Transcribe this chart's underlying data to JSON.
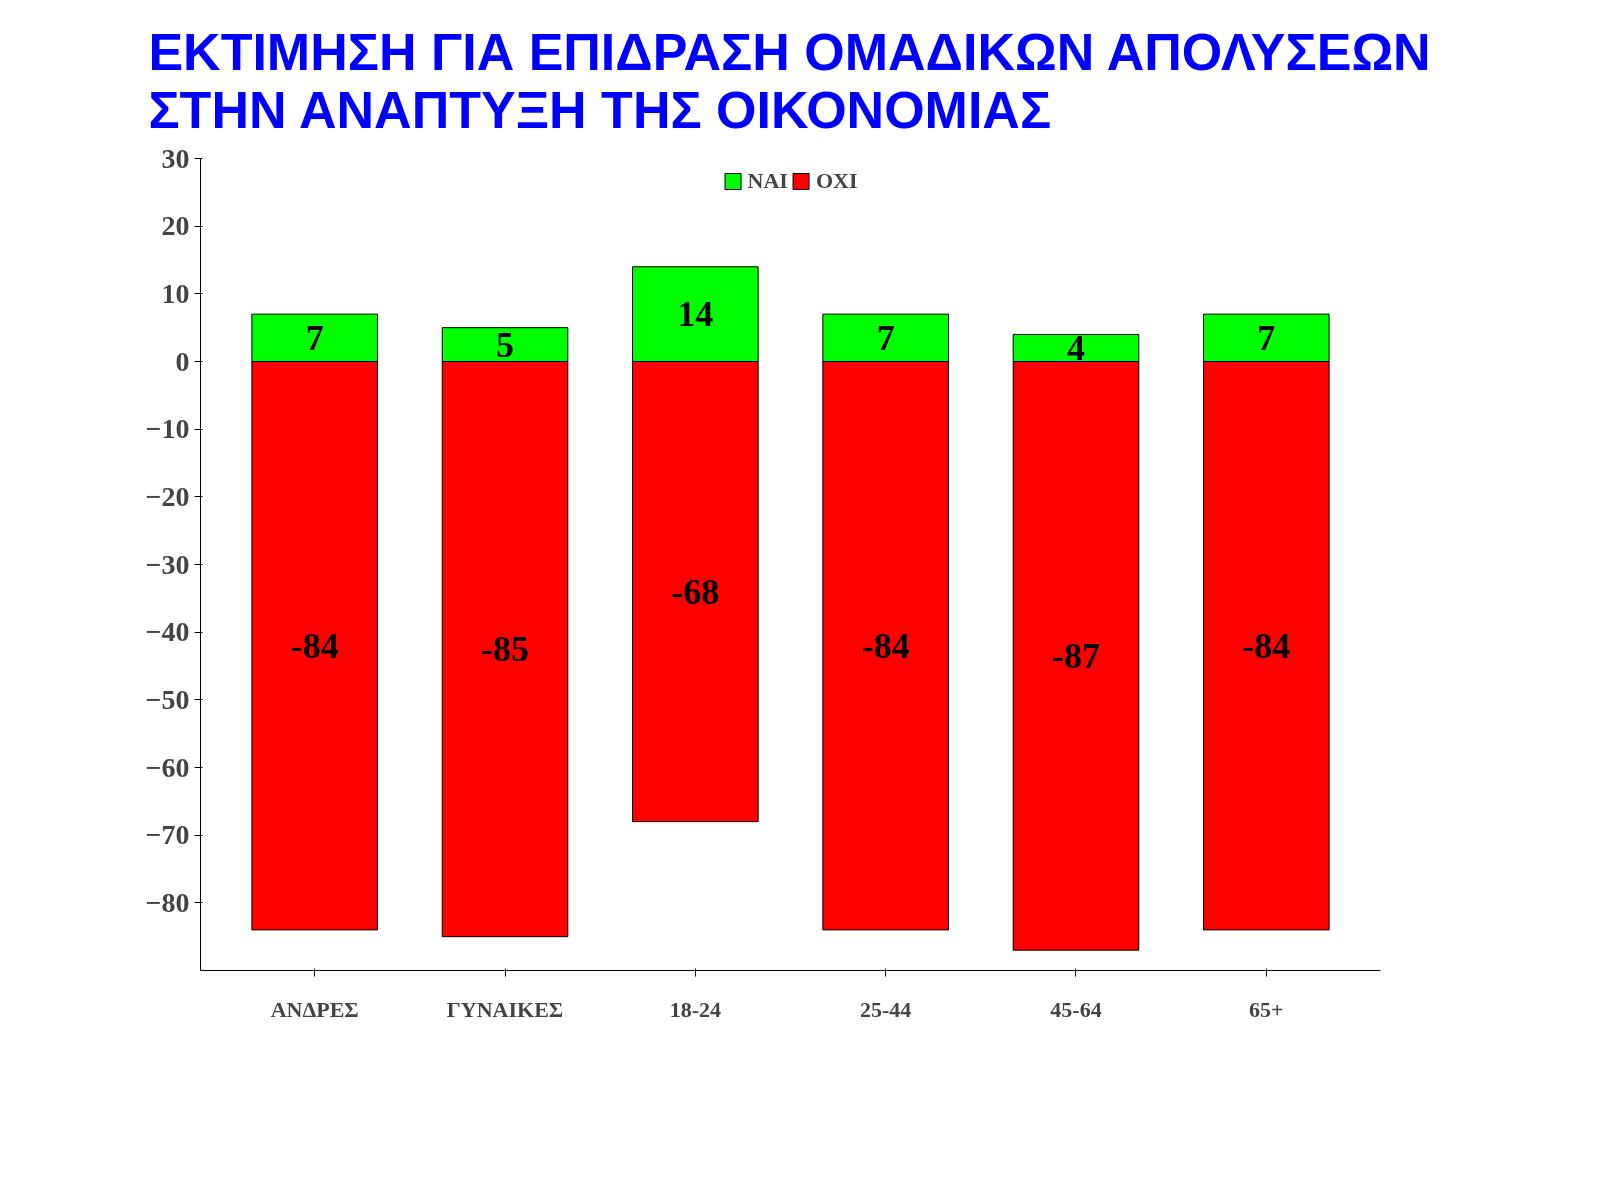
{
  "chart_data": {
    "type": "bar",
    "title": "ΕΚΤΙΜΗΣΗ ΓΙΑ ΕΠΙΔΡΑΣΗ ΟΜΑΔΙΚΩΝ ΑΠΟΛΥΣΕΩΝ\nΣΤΗΝ ΑΝΑΠΤΥΞΗ ΤΗΣ ΟΙΚΟΝΟΜΙΑΣ",
    "categories": [
      "ΑΝΔΡΕΣ",
      "ΓΥΝΑΙΚΕΣ",
      "18-24",
      "25-44",
      "45-64",
      "65+"
    ],
    "series": [
      {
        "name": "ΝΑΙ",
        "color": "#00ff00",
        "values": [
          7,
          5,
          14,
          7,
          4,
          7
        ]
      },
      {
        "name": "ΟΧΙ",
        "color": "#ff0000",
        "values": [
          -84,
          -85,
          -68,
          -84,
          -87,
          -84
        ]
      }
    ],
    "stacked": true,
    "data_labels": true,
    "legend": "top",
    "grid": false,
    "ylim": [
      -90,
      30
    ],
    "yticks": [
      -80,
      -70,
      -60,
      -50,
      -40,
      -30,
      -20,
      -10,
      0,
      10,
      20,
      30
    ]
  }
}
